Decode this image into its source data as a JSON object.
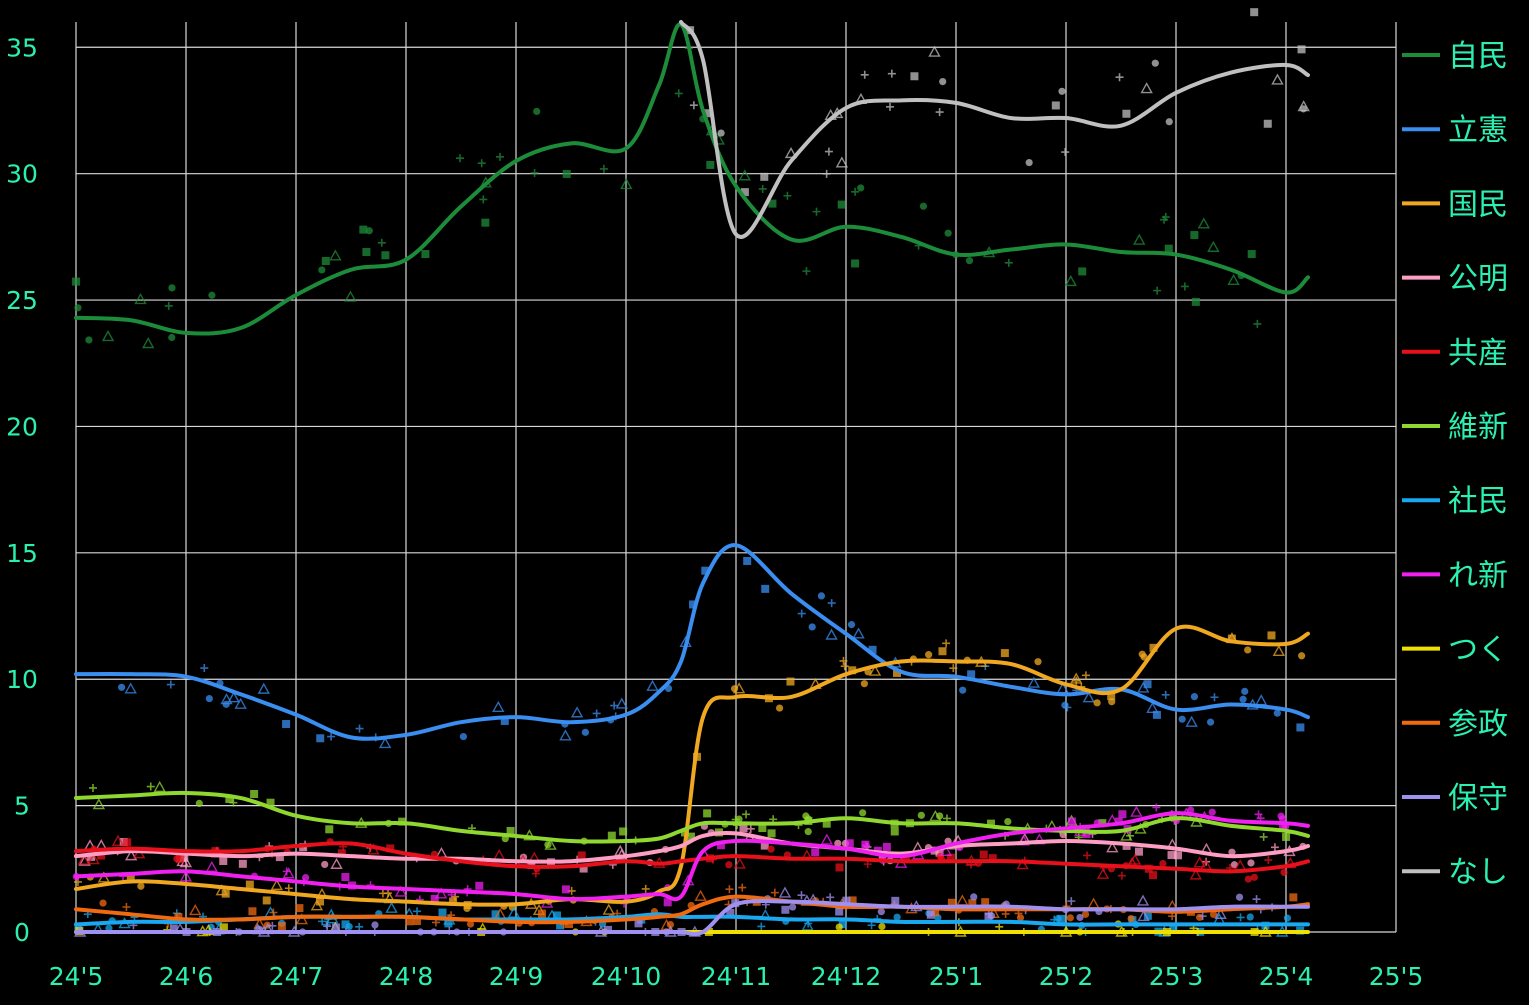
{
  "chart_data": {
    "type": "line",
    "x_ticks": [
      "24'5",
      "24'6",
      "24'7",
      "24'8",
      "24'9",
      "24'10",
      "24'11",
      "24'12",
      "25'1",
      "25'2",
      "25'3",
      "25'4",
      "25'5"
    ],
    "y_ticks": [
      0,
      5,
      10,
      15,
      20,
      25,
      30,
      35
    ],
    "ylim": [
      0,
      36
    ],
    "grid": true,
    "legend_position": "right",
    "x_months": [
      0,
      0.5,
      1,
      1.5,
      2,
      2.5,
      3,
      3.5,
      4,
      4.5,
      5,
      5.3,
      5.5,
      5.7,
      6,
      6.5,
      7,
      7.5,
      8,
      8.5,
      9,
      9.5,
      10,
      10.5,
      11,
      11.2
    ],
    "series": [
      {
        "name": "自民",
        "color": "#1d8c3a",
        "values": [
          24.3,
          24.2,
          23.7,
          23.9,
          25.2,
          26.2,
          26.6,
          28.7,
          30.5,
          31.2,
          31.0,
          33.5,
          35.9,
          32.5,
          29.5,
          27.4,
          27.9,
          27.5,
          26.8,
          27.0,
          27.2,
          26.9,
          26.8,
          26.2,
          25.3,
          25.9
        ]
      },
      {
        "name": "立憲",
        "color": "#3a8ef0",
        "values": [
          10.2,
          10.2,
          10.1,
          9.4,
          8.6,
          7.7,
          7.8,
          8.3,
          8.5,
          8.3,
          8.6,
          9.5,
          10.7,
          13.8,
          15.3,
          13.4,
          11.8,
          10.3,
          10.1,
          9.7,
          9.4,
          9.6,
          8.8,
          9.0,
          8.8,
          8.5
        ]
      },
      {
        "name": "国民",
        "color": "#f0a820",
        "values": [
          1.7,
          2.0,
          1.9,
          1.7,
          1.5,
          1.3,
          1.2,
          1.1,
          1.1,
          1.3,
          1.2,
          1.6,
          2.6,
          8.5,
          9.3,
          9.3,
          10.2,
          10.7,
          10.7,
          10.6,
          9.8,
          9.6,
          12.0,
          11.5,
          11.4,
          11.8
        ]
      },
      {
        "name": "公明",
        "color": "#ff9ec5",
        "values": [
          3.0,
          3.2,
          3.1,
          3.0,
          3.1,
          3.0,
          2.9,
          2.9,
          2.8,
          2.8,
          3.0,
          3.2,
          3.4,
          3.8,
          3.9,
          3.5,
          3.3,
          3.1,
          3.4,
          3.5,
          3.6,
          3.5,
          3.3,
          3.0,
          3.2,
          3.4
        ]
      },
      {
        "name": "共産",
        "color": "#e8101a",
        "values": [
          3.2,
          3.3,
          3.2,
          3.2,
          3.4,
          3.5,
          3.1,
          2.8,
          2.6,
          2.6,
          2.8,
          2.7,
          2.8,
          2.9,
          3.0,
          2.9,
          2.9,
          2.8,
          2.8,
          2.8,
          2.7,
          2.6,
          2.5,
          2.4,
          2.6,
          2.8
        ]
      },
      {
        "name": "維新",
        "color": "#90d830",
        "values": [
          5.3,
          5.4,
          5.5,
          5.3,
          4.6,
          4.3,
          4.3,
          4.0,
          3.8,
          3.6,
          3.6,
          3.7,
          4.0,
          4.3,
          4.3,
          4.3,
          4.5,
          4.3,
          4.3,
          4.1,
          4.0,
          4.0,
          4.5,
          4.2,
          4.0,
          3.8
        ]
      },
      {
        "name": "社民",
        "color": "#1aa8f0",
        "values": [
          0.3,
          0.4,
          0.4,
          0.5,
          0.6,
          0.6,
          0.6,
          0.5,
          0.5,
          0.5,
          0.6,
          0.7,
          0.6,
          0.6,
          0.6,
          0.5,
          0.5,
          0.4,
          0.4,
          0.4,
          0.3,
          0.3,
          0.3,
          0.3,
          0.3,
          0.3
        ]
      },
      {
        "name": "れ新",
        "color": "#f020f0",
        "values": [
          2.2,
          2.3,
          2.4,
          2.2,
          2.0,
          1.8,
          1.7,
          1.6,
          1.5,
          1.3,
          1.4,
          1.5,
          1.4,
          3.2,
          3.6,
          3.5,
          3.3,
          3.0,
          3.5,
          3.9,
          4.1,
          4.3,
          4.7,
          4.4,
          4.3,
          4.2
        ]
      },
      {
        "name": "つく",
        "color": "#f0e000",
        "values": [
          0.0,
          0.0,
          0.0,
          0.0,
          0.0,
          0.0,
          0.0,
          0.0,
          0.0,
          0.0,
          0.0,
          0.0,
          0.0,
          0.0,
          0.0,
          0.0,
          0.0,
          0.0,
          0.0,
          0.0,
          0.0,
          0.0,
          0.0,
          0.0,
          0.0,
          0.0
        ]
      },
      {
        "name": "参政",
        "color": "#f06a10",
        "values": [
          0.9,
          0.7,
          0.5,
          0.5,
          0.6,
          0.6,
          0.6,
          0.5,
          0.4,
          0.4,
          0.5,
          0.6,
          0.7,
          1.1,
          1.4,
          1.2,
          1.0,
          1.0,
          0.9,
          0.9,
          0.9,
          0.9,
          0.8,
          0.9,
          1.0,
          1.1
        ]
      },
      {
        "name": "保守",
        "color": "#a090f0",
        "values": [
          0.0,
          0.0,
          0.0,
          0.0,
          0.0,
          0.0,
          0.0,
          0.0,
          0.0,
          0.0,
          0.0,
          0.0,
          0.0,
          0.0,
          1.1,
          1.2,
          1.1,
          1.0,
          1.0,
          1.0,
          0.9,
          0.9,
          0.9,
          1.0,
          1.0,
          1.0
        ]
      },
      {
        "name": "なし",
        "color": "#c0c0c0",
        "values": [
          null,
          null,
          null,
          null,
          null,
          null,
          null,
          null,
          null,
          null,
          null,
          null,
          36.0,
          34.5,
          27.6,
          30.5,
          32.6,
          32.9,
          32.8,
          32.2,
          32.2,
          31.9,
          33.2,
          34.0,
          34.3,
          33.9
        ]
      }
    ]
  }
}
